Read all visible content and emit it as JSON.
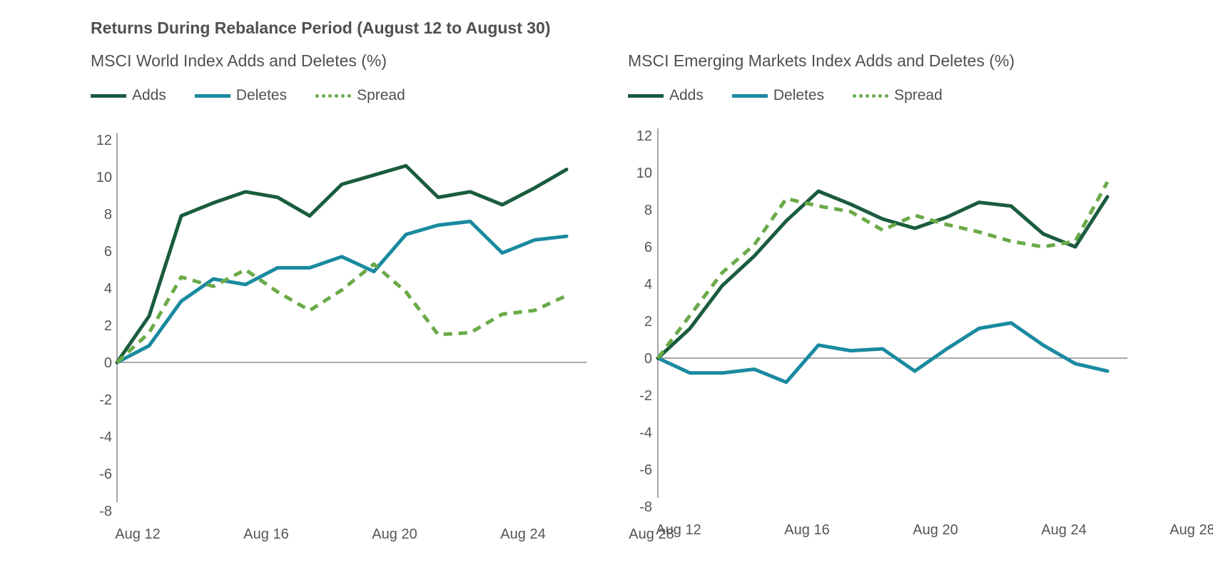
{
  "title": "Returns During Rebalance Period (August 12 to August 30)",
  "colors": {
    "adds": "#1a5c3e",
    "deletes": "#1a8aa0",
    "spread": "#6aaa48",
    "axis": "#777777"
  },
  "chart_data": [
    {
      "type": "line",
      "title": "MSCI World Index Adds and Deletes (%)",
      "xlabel": "",
      "ylabel": "",
      "ylim": [
        -8,
        12
      ],
      "yticks": [
        "12",
        "10",
        "8",
        "6",
        "4",
        "2",
        "0",
        "-2",
        "-4",
        "-6",
        "-8"
      ],
      "x_tick_labels": [
        "Aug 12",
        "Aug 16",
        "Aug 20",
        "Aug 24",
        "Aug 28"
      ],
      "x_tick_index": [
        0,
        4,
        8,
        12,
        16
      ],
      "legend": [
        "Adds",
        "Deletes",
        "Spread"
      ],
      "series": [
        {
          "name": "Adds",
          "style": "solid",
          "values": [
            0,
            2.5,
            7.9,
            8.6,
            9.2,
            8.9,
            7.9,
            9.6,
            10.1,
            10.6,
            8.9,
            9.2,
            8.5,
            9.4,
            10.4
          ]
        },
        {
          "name": "Deletes",
          "style": "solid",
          "values": [
            0,
            0.9,
            3.3,
            4.5,
            4.2,
            5.1,
            5.1,
            5.7,
            4.9,
            6.9,
            7.4,
            7.6,
            5.9,
            6.6,
            6.8
          ]
        },
        {
          "name": "Spread",
          "style": "dashed",
          "values": [
            0,
            1.6,
            4.6,
            4.1,
            5.0,
            3.8,
            2.8,
            3.9,
            5.3,
            3.8,
            1.5,
            1.6,
            2.6,
            2.8,
            3.6
          ]
        }
      ]
    },
    {
      "type": "line",
      "title": "MSCI Emerging Markets Index Adds and Deletes (%)",
      "xlabel": "",
      "ylabel": "",
      "ylim": [
        -8,
        12
      ],
      "yticks": [
        "12",
        "10",
        "8",
        "6",
        "4",
        "2",
        "0",
        "-2",
        "-4",
        "-6",
        "-8"
      ],
      "x_tick_labels": [
        "Aug 12",
        "Aug 16",
        "Aug 20",
        "Aug 24",
        "Aug 28"
      ],
      "x_tick_index": [
        0,
        4,
        8,
        12,
        16
      ],
      "legend": [
        "Adds",
        "Deletes",
        "Spread"
      ],
      "series": [
        {
          "name": "Adds",
          "style": "solid",
          "values": [
            0,
            1.6,
            3.9,
            5.5,
            7.4,
            9.0,
            8.3,
            7.5,
            7.0,
            7.6,
            8.4,
            8.2,
            6.7,
            6.0,
            8.7
          ]
        },
        {
          "name": "Deletes",
          "style": "solid",
          "values": [
            0,
            -0.8,
            -0.8,
            -0.6,
            -1.3,
            0.7,
            0.4,
            0.5,
            -0.7,
            0.5,
            1.6,
            1.9,
            0.7,
            -0.3,
            -0.7
          ]
        },
        {
          "name": "Spread",
          "style": "dashed",
          "values": [
            0,
            2.3,
            4.6,
            6.1,
            8.6,
            8.2,
            7.9,
            6.9,
            7.7,
            7.2,
            6.8,
            6.3,
            6.0,
            6.3,
            9.5
          ]
        }
      ]
    }
  ]
}
